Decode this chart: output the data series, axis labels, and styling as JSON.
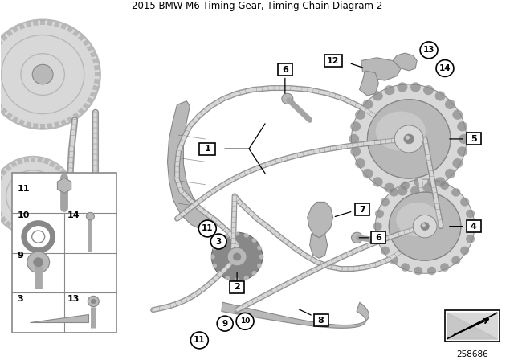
{
  "title": "2015 BMW M6 Timing Gear, Timing Chain Diagram 2",
  "diagram_id": "258686",
  "bg_color": "#ffffff",
  "fig_width": 6.4,
  "fig_height": 4.48,
  "dpi": 100,
  "gray_lt": "#d8d8d8",
  "gray_md": "#b8b8b8",
  "gray_dk": "#888888",
  "gray_vdk": "#606060",
  "white": "#ffffff",
  "black": "#000000"
}
